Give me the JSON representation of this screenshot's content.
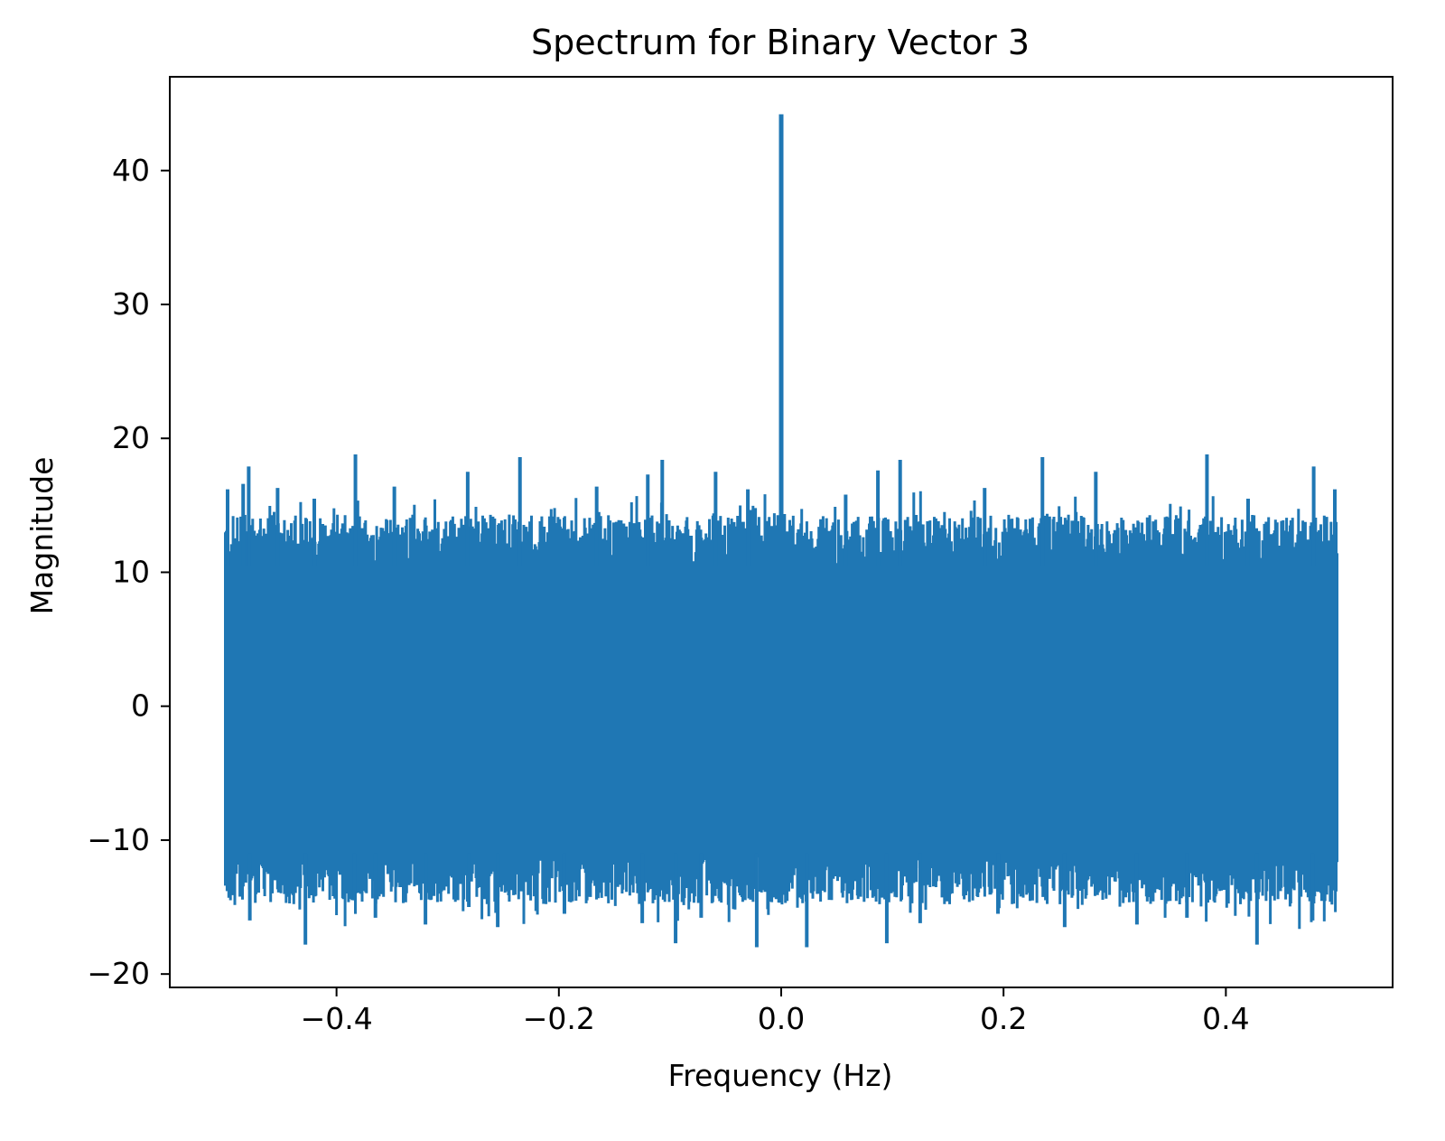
{
  "chart_data": {
    "type": "line",
    "title": "Spectrum for Binary Vector 3",
    "xlabel": "Frequency (Hz)",
    "ylabel": "Magnitude",
    "xlim": [
      -0.55,
      0.55
    ],
    "ylim": [
      -21,
      47
    ],
    "xticks": [
      -0.4,
      -0.2,
      0.0,
      0.2,
      0.4
    ],
    "xtick_labels": [
      "−0.4",
      "−0.2",
      "0.0",
      "0.2",
      "0.4"
    ],
    "yticks": [
      -20,
      -10,
      0,
      10,
      20,
      30,
      40
    ],
    "ytick_labels": [
      "−20",
      "−10",
      "0",
      "10",
      "20",
      "30",
      "40"
    ],
    "grid": false,
    "legend": "none",
    "series": [
      {
        "color": "#1f77b4",
        "x_range": [
          -0.5,
          0.5
        ],
        "typical_band": [
          -11,
          10.5
        ],
        "dc_peak": {
          "x": 0.0,
          "y": 44.2
        },
        "upper_peaks": [
          {
            "x": -0.498,
            "y": 16.2
          },
          {
            "x": -0.484,
            "y": 16.6
          },
          {
            "x": -0.479,
            "y": 17.9
          },
          {
            "x": -0.453,
            "y": 16.3
          },
          {
            "x": -0.42,
            "y": 15.5
          },
          {
            "x": -0.383,
            "y": 18.8
          },
          {
            "x": -0.348,
            "y": 16.4
          },
          {
            "x": -0.282,
            "y": 17.5
          },
          {
            "x": -0.235,
            "y": 18.6
          },
          {
            "x": -0.166,
            "y": 16.4
          },
          {
            "x": -0.12,
            "y": 17.3
          },
          {
            "x": -0.107,
            "y": 18.4
          },
          {
            "x": -0.059,
            "y": 17.5
          },
          {
            "x": -0.03,
            "y": 16.2
          },
          {
            "x": 0.058,
            "y": 15.8
          },
          {
            "x": 0.087,
            "y": 17.6
          },
          {
            "x": 0.107,
            "y": 18.4
          },
          {
            "x": 0.183,
            "y": 16.3
          },
          {
            "x": 0.235,
            "y": 18.6
          },
          {
            "x": 0.283,
            "y": 17.5
          },
          {
            "x": 0.383,
            "y": 18.8
          },
          {
            "x": 0.42,
            "y": 15.5
          },
          {
            "x": 0.479,
            "y": 17.9
          },
          {
            "x": 0.498,
            "y": 16.2
          }
        ],
        "lower_peaks": [
          {
            "x": -0.478,
            "y": -16.0
          },
          {
            "x": -0.428,
            "y": -17.8
          },
          {
            "x": -0.384,
            "y": -14.5
          },
          {
            "x": -0.365,
            "y": -15.8
          },
          {
            "x": -0.32,
            "y": -16.3
          },
          {
            "x": -0.281,
            "y": -15.0
          },
          {
            "x": -0.255,
            "y": -16.5
          },
          {
            "x": -0.195,
            "y": -15.5
          },
          {
            "x": -0.125,
            "y": -16.2
          },
          {
            "x": -0.095,
            "y": -17.7
          },
          {
            "x": -0.072,
            "y": -15.8
          },
          {
            "x": -0.022,
            "y": -18.0
          },
          {
            "x": 0.023,
            "y": -18.0
          },
          {
            "x": 0.095,
            "y": -17.7
          },
          {
            "x": 0.125,
            "y": -16.2
          },
          {
            "x": 0.195,
            "y": -15.5
          },
          {
            "x": 0.255,
            "y": -16.5
          },
          {
            "x": 0.32,
            "y": -16.3
          },
          {
            "x": 0.365,
            "y": -15.8
          },
          {
            "x": 0.428,
            "y": -17.8
          },
          {
            "x": 0.478,
            "y": -16.0
          }
        ]
      }
    ]
  }
}
